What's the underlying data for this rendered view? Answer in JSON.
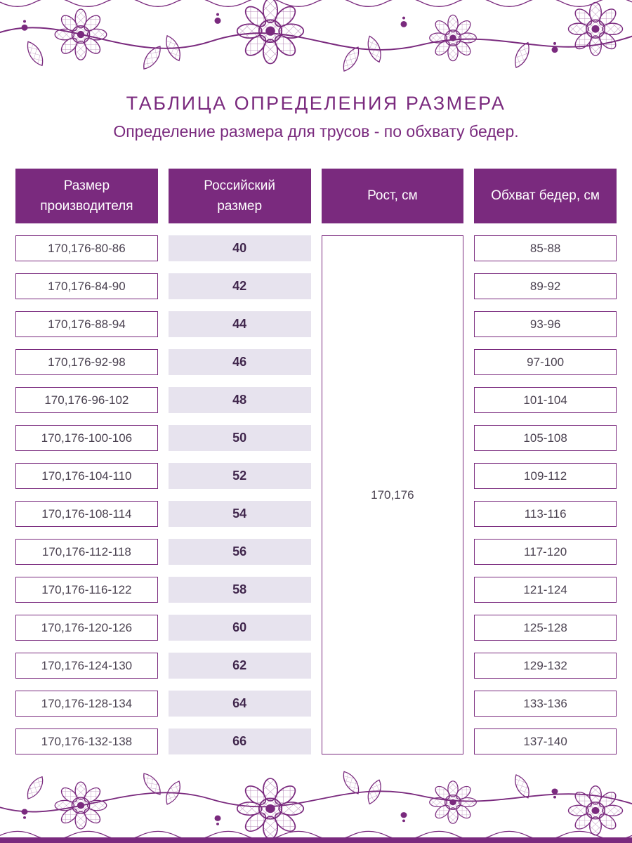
{
  "page": {
    "title": "ТАБЛИЦА ОПРЕДЕЛЕНИЯ РАЗМЕРА",
    "subtitle": "Определение размера для трусов - по обхвату бедер."
  },
  "colors": {
    "primary": "#7A2A7E",
    "cell_fill": "#E7E3EE",
    "text": "#4A4150",
    "text_dark": "#41274D",
    "background": "#FFFFFF"
  },
  "decor": {
    "top": "lace-ornament",
    "bottom": "lace-ornament",
    "bottom_bar": "solid-purple-strip"
  },
  "table": {
    "headers": {
      "manufacturer": [
        "Размер",
        "производителя"
      ],
      "russian": [
        "Российский",
        "размер"
      ],
      "height": [
        "Рост, см"
      ],
      "hips": [
        "Обхват бедер, см"
      ]
    },
    "height_value": "170,176",
    "rows": [
      {
        "manufacturer": "170,176-80-86",
        "russian": "40",
        "hips": "85-88"
      },
      {
        "manufacturer": "170,176-84-90",
        "russian": "42",
        "hips": "89-92"
      },
      {
        "manufacturer": "170,176-88-94",
        "russian": "44",
        "hips": "93-96"
      },
      {
        "manufacturer": "170,176-92-98",
        "russian": "46",
        "hips": "97-100"
      },
      {
        "manufacturer": "170,176-96-102",
        "russian": "48",
        "hips": "101-104"
      },
      {
        "manufacturer": "170,176-100-106",
        "russian": "50",
        "hips": "105-108"
      },
      {
        "manufacturer": "170,176-104-110",
        "russian": "52",
        "hips": "109-112"
      },
      {
        "manufacturer": "170,176-108-114",
        "russian": "54",
        "hips": "113-116"
      },
      {
        "manufacturer": "170,176-112-118",
        "russian": "56",
        "hips": "117-120"
      },
      {
        "manufacturer": "170,176-116-122",
        "russian": "58",
        "hips": "121-124"
      },
      {
        "manufacturer": "170,176-120-126",
        "russian": "60",
        "hips": "125-128"
      },
      {
        "manufacturer": "170,176-124-130",
        "russian": "62",
        "hips": "129-132"
      },
      {
        "manufacturer": "170,176-128-134",
        "russian": "64",
        "hips": "133-136"
      },
      {
        "manufacturer": "170,176-132-138",
        "russian": "66",
        "hips": "137-140"
      }
    ]
  },
  "chart_data": {
    "type": "table",
    "title": "ТАБЛИЦА ОПРЕДЕЛЕНИЯ РАЗМЕРА",
    "subtitle": "Определение размера для трусов - по обхвату бедер.",
    "columns": [
      "Размер производителя",
      "Российский размер",
      "Рост, см",
      "Обхват бедер, см"
    ],
    "height_column_merged": true,
    "rows": [
      [
        "170,176-80-86",
        "40",
        "170,176",
        "85-88"
      ],
      [
        "170,176-84-90",
        "42",
        "170,176",
        "89-92"
      ],
      [
        "170,176-88-94",
        "44",
        "170,176",
        "93-96"
      ],
      [
        "170,176-92-98",
        "46",
        "170,176",
        "97-100"
      ],
      [
        "170,176-96-102",
        "48",
        "170,176",
        "101-104"
      ],
      [
        "170,176-100-106",
        "50",
        "170,176",
        "105-108"
      ],
      [
        "170,176-104-110",
        "52",
        "170,176",
        "109-112"
      ],
      [
        "170,176-108-114",
        "54",
        "170,176",
        "113-116"
      ],
      [
        "170,176-112-118",
        "56",
        "170,176",
        "117-120"
      ],
      [
        "170,176-116-122",
        "58",
        "170,176",
        "121-124"
      ],
      [
        "170,176-120-126",
        "60",
        "170,176",
        "125-128"
      ],
      [
        "170,176-124-130",
        "62",
        "170,176",
        "129-132"
      ],
      [
        "170,176-128-134",
        "64",
        "170,176",
        "133-136"
      ],
      [
        "170,176-132-138",
        "66",
        "170,176",
        "137-140"
      ]
    ]
  }
}
